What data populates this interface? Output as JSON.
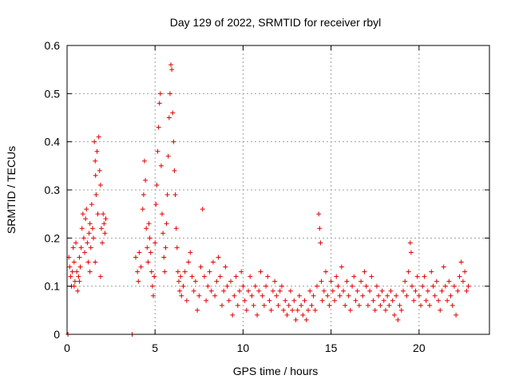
{
  "chart_data": {
    "type": "scatter",
    "title": "Day 129 of 2022, SRMTID for receiver rbyl",
    "xlabel": "GPS time / hours",
    "ylabel": "SRMTID / TECUs",
    "xlim": [
      0,
      24
    ],
    "ylim": [
      0,
      0.6
    ],
    "xticks": [
      0,
      5,
      10,
      15,
      20
    ],
    "yticks": [
      0,
      0.1,
      0.2,
      0.3,
      0.4,
      0.5,
      0.6
    ],
    "ytick_labels": [
      "0",
      "0.1",
      "0.2",
      "0.3",
      "0.4",
      "0.5",
      "0.6"
    ],
    "grid": true,
    "marker": "+",
    "color": "#e00000",
    "series": [
      {
        "name": "SRMTID",
        "points": [
          [
            0.05,
            0.0
          ],
          [
            0.1,
            0.16
          ],
          [
            0.15,
            0.14
          ],
          [
            0.2,
            0.12
          ],
          [
            0.25,
            0.1
          ],
          [
            0.3,
            0.13
          ],
          [
            0.35,
            0.18
          ],
          [
            0.4,
            0.15
          ],
          [
            0.45,
            0.11
          ],
          [
            0.5,
            0.19
          ],
          [
            0.55,
            0.13
          ],
          [
            0.6,
            0.09
          ],
          [
            0.65,
            0.12
          ],
          [
            0.7,
            0.16
          ],
          [
            0.75,
            0.14
          ],
          [
            0.8,
            0.18
          ],
          [
            0.85,
            0.22
          ],
          [
            0.9,
            0.25
          ],
          [
            0.95,
            0.2
          ],
          [
            1.0,
            0.17
          ],
          [
            1.05,
            0.24
          ],
          [
            1.1,
            0.26
          ],
          [
            1.15,
            0.19
          ],
          [
            1.2,
            0.15
          ],
          [
            1.25,
            0.21
          ],
          [
            1.3,
            0.23
          ],
          [
            1.35,
            0.18
          ],
          [
            1.4,
            0.27
          ],
          [
            1.45,
            0.22
          ],
          [
            1.5,
            0.2
          ],
          [
            1.55,
            0.4
          ],
          [
            1.6,
            0.36
          ],
          [
            1.62,
            0.33
          ],
          [
            1.65,
            0.29
          ],
          [
            1.7,
            0.38
          ],
          [
            1.75,
            0.25
          ],
          [
            1.8,
            0.41
          ],
          [
            1.85,
            0.34
          ],
          [
            1.9,
            0.31
          ],
          [
            1.95,
            0.22
          ],
          [
            2.0,
            0.19
          ],
          [
            2.05,
            0.25
          ],
          [
            2.1,
            0.23
          ],
          [
            2.15,
            0.21
          ],
          [
            2.2,
            0.24
          ],
          [
            1.3,
            0.13
          ],
          [
            1.6,
            0.15
          ],
          [
            1.9,
            0.12
          ],
          [
            0.4,
            0.1
          ],
          [
            0.7,
            0.11
          ],
          [
            3.7,
            0.0
          ],
          [
            3.9,
            0.16
          ],
          [
            4.0,
            0.13
          ],
          [
            4.05,
            0.11
          ],
          [
            4.1,
            0.17
          ],
          [
            4.2,
            0.14
          ],
          [
            4.3,
            0.26
          ],
          [
            4.35,
            0.29
          ],
          [
            4.4,
            0.36
          ],
          [
            4.45,
            0.32
          ],
          [
            4.5,
            0.22
          ],
          [
            4.55,
            0.18
          ],
          [
            4.6,
            0.15
          ],
          [
            4.65,
            0.23
          ],
          [
            4.7,
            0.2
          ],
          [
            4.75,
            0.17
          ],
          [
            4.8,
            0.13
          ],
          [
            4.85,
            0.1
          ],
          [
            4.9,
            0.08
          ],
          [
            4.95,
            0.12
          ],
          [
            5.0,
            0.19
          ],
          [
            5.05,
            0.27
          ],
          [
            5.1,
            0.31
          ],
          [
            5.15,
            0.38
          ],
          [
            5.2,
            0.43
          ],
          [
            5.25,
            0.48
          ],
          [
            5.3,
            0.5
          ],
          [
            5.35,
            0.35
          ],
          [
            5.4,
            0.25
          ],
          [
            5.45,
            0.21
          ],
          [
            5.5,
            0.16
          ],
          [
            5.55,
            0.13
          ],
          [
            5.6,
            0.18
          ],
          [
            5.65,
            0.23
          ],
          [
            5.7,
            0.29
          ],
          [
            5.75,
            0.37
          ],
          [
            5.8,
            0.45
          ],
          [
            5.85,
            0.5
          ],
          [
            5.9,
            0.56
          ],
          [
            5.95,
            0.55
          ],
          [
            6.0,
            0.46
          ],
          [
            6.05,
            0.4
          ],
          [
            6.1,
            0.34
          ],
          [
            6.15,
            0.29
          ],
          [
            6.2,
            0.22
          ],
          [
            6.25,
            0.18
          ],
          [
            6.3,
            0.13
          ],
          [
            6.35,
            0.11
          ],
          [
            6.4,
            0.09
          ],
          [
            6.45,
            0.12
          ],
          [
            6.5,
            0.08
          ],
          [
            6.6,
            0.1
          ],
          [
            6.7,
            0.13
          ],
          [
            6.8,
            0.07
          ],
          [
            6.9,
            0.15
          ],
          [
            7.0,
            0.17
          ],
          [
            7.1,
            0.12
          ],
          [
            7.2,
            0.09
          ],
          [
            7.3,
            0.11
          ],
          [
            7.4,
            0.05
          ],
          [
            7.5,
            0.08
          ],
          [
            7.6,
            0.14
          ],
          [
            7.7,
            0.26
          ],
          [
            7.8,
            0.12
          ],
          [
            7.9,
            0.07
          ],
          [
            8.0,
            0.1
          ],
          [
            8.1,
            0.13
          ],
          [
            8.2,
            0.09
          ],
          [
            8.3,
            0.15
          ],
          [
            8.4,
            0.08
          ],
          [
            8.5,
            0.11
          ],
          [
            8.6,
            0.16
          ],
          [
            8.7,
            0.12
          ],
          [
            8.8,
            0.06
          ],
          [
            8.9,
            0.09
          ],
          [
            9.0,
            0.14
          ],
          [
            9.1,
            0.1
          ],
          [
            9.2,
            0.07
          ],
          [
            9.3,
            0.11
          ],
          [
            9.4,
            0.04
          ],
          [
            9.5,
            0.08
          ],
          [
            9.6,
            0.12
          ],
          [
            9.7,
            0.06
          ],
          [
            9.8,
            0.09
          ],
          [
            9.9,
            0.13
          ],
          [
            10.0,
            0.1
          ],
          [
            10.1,
            0.07
          ],
          [
            10.2,
            0.05
          ],
          [
            10.3,
            0.09
          ],
          [
            10.4,
            0.12
          ],
          [
            10.5,
            0.08
          ],
          [
            10.6,
            0.06
          ],
          [
            10.7,
            0.1
          ],
          [
            10.8,
            0.04
          ],
          [
            10.9,
            0.09
          ],
          [
            11.0,
            0.13
          ],
          [
            11.1,
            0.08
          ],
          [
            11.2,
            0.06
          ],
          [
            11.3,
            0.1
          ],
          [
            11.4,
            0.12
          ],
          [
            11.5,
            0.07
          ],
          [
            11.6,
            0.05
          ],
          [
            11.7,
            0.09
          ],
          [
            11.8,
            0.11
          ],
          [
            11.9,
            0.08
          ],
          [
            12.0,
            0.06
          ],
          [
            12.1,
            0.09
          ],
          [
            12.2,
            0.1
          ],
          [
            12.3,
            0.05
          ],
          [
            12.4,
            0.07
          ],
          [
            12.5,
            0.04
          ],
          [
            12.6,
            0.06
          ],
          [
            12.7,
            0.09
          ],
          [
            12.8,
            0.05
          ],
          [
            12.9,
            0.07
          ],
          [
            13.0,
            0.03
          ],
          [
            13.1,
            0.05
          ],
          [
            13.2,
            0.08
          ],
          [
            13.3,
            0.06
          ],
          [
            13.4,
            0.04
          ],
          [
            13.5,
            0.07
          ],
          [
            13.6,
            0.03
          ],
          [
            13.7,
            0.05
          ],
          [
            13.8,
            0.09
          ],
          [
            13.9,
            0.06
          ],
          [
            14.0,
            0.08
          ],
          [
            14.1,
            0.05
          ],
          [
            14.2,
            0.1
          ],
          [
            14.3,
            0.25
          ],
          [
            14.35,
            0.22
          ],
          [
            14.4,
            0.19
          ],
          [
            14.45,
            0.11
          ],
          [
            14.5,
            0.07
          ],
          [
            14.6,
            0.09
          ],
          [
            14.7,
            0.13
          ],
          [
            14.8,
            0.08
          ],
          [
            14.9,
            0.06
          ],
          [
            15.0,
            0.11
          ],
          [
            15.1,
            0.09
          ],
          [
            15.2,
            0.07
          ],
          [
            15.3,
            0.12
          ],
          [
            15.4,
            0.1
          ],
          [
            15.5,
            0.08
          ],
          [
            15.6,
            0.14
          ],
          [
            15.7,
            0.09
          ],
          [
            15.8,
            0.06
          ],
          [
            15.9,
            0.11
          ],
          [
            16.0,
            0.08
          ],
          [
            16.1,
            0.05
          ],
          [
            16.2,
            0.1
          ],
          [
            16.3,
            0.12
          ],
          [
            16.4,
            0.07
          ],
          [
            16.5,
            0.09
          ],
          [
            16.6,
            0.06
          ],
          [
            16.7,
            0.11
          ],
          [
            16.8,
            0.08
          ],
          [
            16.9,
            0.13
          ],
          [
            17.0,
            0.1
          ],
          [
            17.1,
            0.06
          ],
          [
            17.2,
            0.09
          ],
          [
            17.3,
            0.12
          ],
          [
            17.4,
            0.07
          ],
          [
            17.5,
            0.05
          ],
          [
            17.6,
            0.1
          ],
          [
            17.7,
            0.08
          ],
          [
            17.8,
            0.06
          ],
          [
            17.9,
            0.09
          ],
          [
            18.0,
            0.07
          ],
          [
            18.1,
            0.05
          ],
          [
            18.2,
            0.08
          ],
          [
            18.3,
            0.06
          ],
          [
            18.4,
            0.09
          ],
          [
            18.5,
            0.07
          ],
          [
            18.6,
            0.04
          ],
          [
            18.7,
            0.08
          ],
          [
            18.8,
            0.03
          ],
          [
            18.9,
            0.06
          ],
          [
            19.0,
            0.05
          ],
          [
            19.1,
            0.09
          ],
          [
            19.2,
            0.11
          ],
          [
            19.3,
            0.08
          ],
          [
            19.4,
            0.13
          ],
          [
            19.5,
            0.19
          ],
          [
            19.55,
            0.17
          ],
          [
            19.6,
            0.1
          ],
          [
            19.7,
            0.07
          ],
          [
            19.8,
            0.09
          ],
          [
            19.9,
            0.12
          ],
          [
            20.0,
            0.08
          ],
          [
            20.1,
            0.06
          ],
          [
            20.2,
            0.1
          ],
          [
            20.3,
            0.12
          ],
          [
            20.4,
            0.07
          ],
          [
            20.5,
            0.09
          ],
          [
            20.6,
            0.06
          ],
          [
            20.7,
            0.13
          ],
          [
            20.8,
            0.1
          ],
          [
            20.9,
            0.08
          ],
          [
            21.0,
            0.11
          ],
          [
            21.1,
            0.07
          ],
          [
            21.2,
            0.05
          ],
          [
            21.3,
            0.09
          ],
          [
            21.4,
            0.14
          ],
          [
            21.5,
            0.1
          ],
          [
            21.6,
            0.07
          ],
          [
            21.7,
            0.11
          ],
          [
            21.8,
            0.08
          ],
          [
            21.9,
            0.06
          ],
          [
            22.0,
            0.1
          ],
          [
            22.1,
            0.04
          ],
          [
            22.2,
            0.09
          ],
          [
            22.3,
            0.12
          ],
          [
            22.4,
            0.15
          ],
          [
            22.5,
            0.11
          ],
          [
            22.6,
            0.13
          ],
          [
            22.7,
            0.09
          ],
          [
            22.8,
            0.1
          ]
        ]
      }
    ]
  }
}
